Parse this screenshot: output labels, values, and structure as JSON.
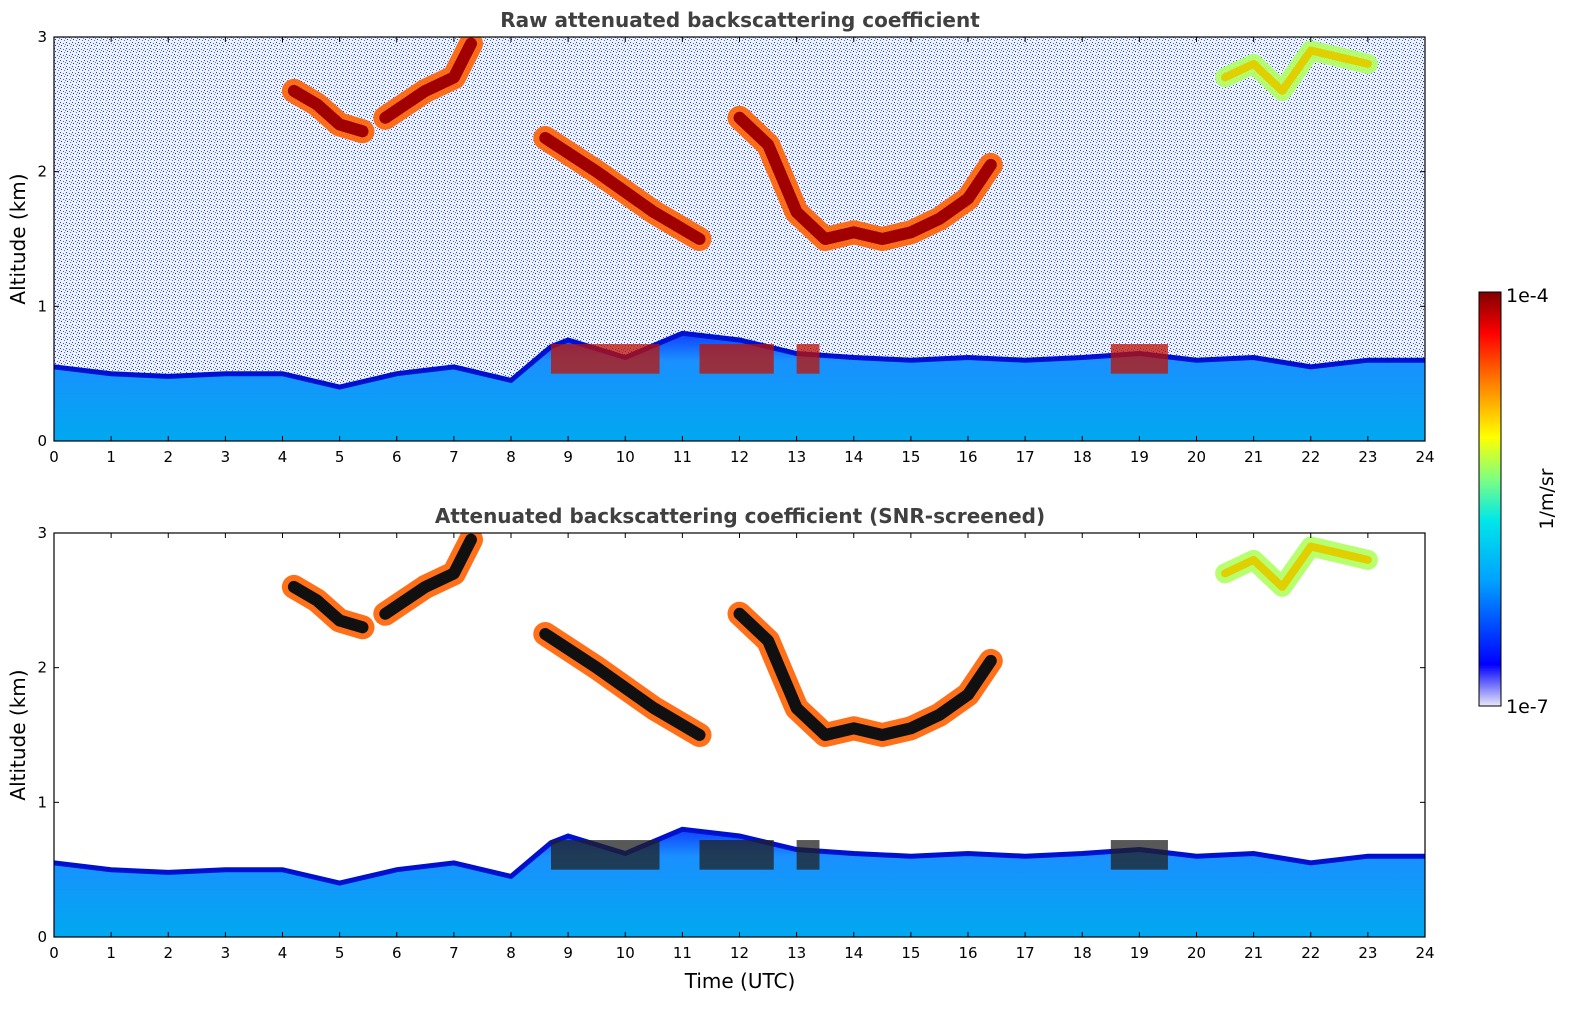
{
  "chart_data": [
    {
      "type": "heatmap",
      "title": "Raw attenuated backscattering coefficient",
      "xlabel": "",
      "ylabel": "Altitude (km)",
      "xlim": [
        0,
        24
      ],
      "ylim": [
        0,
        3
      ],
      "xticks": [
        "0",
        "1",
        "2",
        "3",
        "4",
        "5",
        "6",
        "7",
        "8",
        "9",
        "10",
        "11",
        "12",
        "13",
        "14",
        "15",
        "16",
        "17",
        "18",
        "19",
        "20",
        "21",
        "22",
        "23",
        "24"
      ],
      "yticks": [
        "0",
        "1",
        "2",
        "3"
      ],
      "noise": true,
      "layers": [
        {
          "name": "boundary-layer top (km)",
          "t": [
            0,
            1,
            2,
            3,
            4,
            5,
            6,
            7,
            8,
            8.7,
            9,
            10,
            11,
            12,
            13,
            14,
            15,
            16,
            17,
            18,
            19,
            20,
            21,
            22,
            23,
            24
          ],
          "z": [
            0.55,
            0.5,
            0.48,
            0.5,
            0.5,
            0.4,
            0.5,
            0.55,
            0.45,
            0.7,
            0.75,
            0.62,
            0.8,
            0.75,
            0.65,
            0.62,
            0.6,
            0.62,
            0.6,
            0.62,
            0.65,
            0.6,
            0.62,
            0.55,
            0.6,
            0.6
          ]
        },
        {
          "name": "cloud 1 (km)",
          "t": [
            4.2,
            4.6,
            5,
            5.4
          ],
          "z": [
            2.6,
            2.5,
            2.35,
            2.3
          ]
        },
        {
          "name": "cloud 2 (km)",
          "t": [
            5.8,
            6.5,
            7,
            7.3
          ],
          "z": [
            2.4,
            2.6,
            2.7,
            2.95
          ]
        },
        {
          "name": "cloud 3 (km)",
          "t": [
            8.6,
            9.5,
            10.5,
            11.3
          ],
          "z": [
            2.25,
            2.0,
            1.7,
            1.5
          ]
        },
        {
          "name": "cloud 4 (km)",
          "t": [
            12,
            12.5,
            13,
            13.5,
            14,
            14.5,
            15,
            15.5,
            16,
            16.4
          ],
          "z": [
            2.4,
            2.2,
            1.7,
            1.5,
            1.55,
            1.5,
            1.55,
            1.65,
            1.8,
            2.05
          ]
        },
        {
          "name": "cirrus (km)",
          "t": [
            20.5,
            21,
            21.5,
            22,
            22.5,
            23
          ],
          "z": [
            2.7,
            2.8,
            2.6,
            2.9,
            2.85,
            2.8
          ]
        }
      ]
    },
    {
      "type": "heatmap",
      "title": "Attenuated backscattering coefficient (SNR-screened)",
      "xlabel": "Time (UTC)",
      "ylabel": "Altitude (km)",
      "xlim": [
        0,
        24
      ],
      "ylim": [
        0,
        3
      ],
      "xticks": [
        "0",
        "1",
        "2",
        "3",
        "4",
        "5",
        "6",
        "7",
        "8",
        "9",
        "10",
        "11",
        "12",
        "13",
        "14",
        "15",
        "16",
        "17",
        "18",
        "19",
        "20",
        "21",
        "22",
        "23",
        "24"
      ],
      "yticks": [
        "0",
        "1",
        "2",
        "3"
      ],
      "noise": false,
      "layers": [
        {
          "name": "boundary-layer top (km)",
          "t": [
            0,
            1,
            2,
            3,
            4,
            5,
            6,
            7,
            8,
            8.7,
            9,
            10,
            11,
            12,
            13,
            14,
            15,
            16,
            17,
            18,
            19,
            20,
            21,
            22,
            23,
            24
          ],
          "z": [
            0.55,
            0.5,
            0.48,
            0.5,
            0.5,
            0.4,
            0.5,
            0.55,
            0.45,
            0.7,
            0.75,
            0.62,
            0.8,
            0.75,
            0.65,
            0.62,
            0.6,
            0.62,
            0.6,
            0.62,
            0.65,
            0.6,
            0.62,
            0.55,
            0.6,
            0.6
          ]
        },
        {
          "name": "cloud 1 (km)",
          "t": [
            4.2,
            4.6,
            5,
            5.4
          ],
          "z": [
            2.6,
            2.5,
            2.35,
            2.3
          ]
        },
        {
          "name": "cloud 2 (km)",
          "t": [
            5.8,
            6.5,
            7,
            7.3
          ],
          "z": [
            2.4,
            2.6,
            2.7,
            2.95
          ]
        },
        {
          "name": "cloud 3 (km)",
          "t": [
            8.6,
            9.5,
            10.5,
            11.3
          ],
          "z": [
            2.25,
            2.0,
            1.7,
            1.5
          ]
        },
        {
          "name": "cloud 4 (km)",
          "t": [
            12,
            12.5,
            13,
            13.5,
            14,
            14.5,
            15,
            15.5,
            16,
            16.4
          ],
          "z": [
            2.4,
            2.2,
            1.7,
            1.5,
            1.55,
            1.5,
            1.55,
            1.65,
            1.8,
            2.05
          ]
        },
        {
          "name": "cirrus (km)",
          "t": [
            20.5,
            21,
            21.5,
            22,
            22.5,
            23
          ],
          "z": [
            2.7,
            2.8,
            2.6,
            2.9,
            2.85,
            2.8
          ]
        }
      ]
    }
  ],
  "colorbar": {
    "label": "1/m/sr",
    "max_label": "1e-4",
    "min_label": "1e-7",
    "scale": "log",
    "colors": [
      "#e8e8f8",
      "#0000ff",
      "#00a0ff",
      "#00e8e8",
      "#80ff80",
      "#ffff00",
      "#ff8000",
      "#ff0000",
      "#800000"
    ]
  }
}
